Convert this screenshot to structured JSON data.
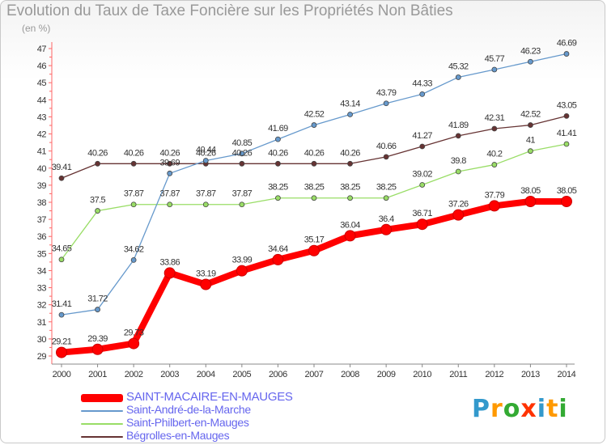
{
  "header": {
    "title": "Evolution du Taux de Taxe Foncière sur les Propriétés Non Bâties",
    "subtitle": "(en %)"
  },
  "logo": {
    "text": "Proxiti",
    "colors": [
      "#3399cc",
      "#ff9900",
      "#33aa33",
      "#ff3300"
    ]
  },
  "chart_data": {
    "type": "line",
    "x": [
      "2000",
      "2001",
      "2002",
      "2003",
      "2004",
      "2005",
      "2006",
      "2007",
      "2008",
      "2009",
      "2010",
      "2011",
      "2012",
      "2013",
      "2014"
    ],
    "ylim": [
      29,
      47
    ],
    "yticks": [
      29,
      30,
      31,
      32,
      33,
      34,
      35,
      36,
      37,
      38,
      39,
      40,
      41,
      42,
      43,
      44,
      45,
      46,
      47
    ],
    "grid": false,
    "legend_placement": "bottom-left",
    "series": [
      {
        "name": "SAINT-MACAIRE-EN-MAUGES",
        "color": "#ff0000",
        "values": [
          29.21,
          29.39,
          29.73,
          33.86,
          33.19,
          33.99,
          34.64,
          35.17,
          36.04,
          36.4,
          36.71,
          37.26,
          37.79,
          38.05,
          38.05
        ],
        "labels": [
          "29.21",
          "29.39",
          "29.73",
          "33.86",
          "33.19",
          "33.99",
          "34.64",
          "35.17",
          "36.04",
          "36.4",
          "36.71",
          "37.26",
          "37.79",
          "38.05",
          "38.05"
        ]
      },
      {
        "name": "Saint-André-de-la-Marche",
        "color": "#6699cc",
        "values": [
          31.41,
          31.72,
          34.62,
          39.69,
          40.44,
          40.85,
          41.69,
          42.52,
          43.14,
          43.79,
          44.33,
          45.32,
          45.77,
          46.23,
          46.69
        ],
        "labels": [
          "31.41",
          "31.72",
          "34.62",
          "39.69",
          "40.44",
          "40.85",
          "41.69",
          "42.52",
          "43.14",
          "43.79",
          "44.33",
          "45.32",
          "45.77",
          "46.23",
          "46.69"
        ]
      },
      {
        "name": "Saint-Philbert-en-Mauges",
        "color": "#99dd66",
        "values": [
          34.65,
          37.5,
          37.87,
          37.87,
          37.87,
          37.87,
          38.25,
          38.25,
          38.25,
          38.25,
          39.02,
          39.8,
          40.2,
          41,
          41.41
        ],
        "labels": [
          "34.65",
          "37.5",
          "37.87",
          "37.87",
          "37.87",
          "37.87",
          "38.25",
          "38.25",
          "38.25",
          "38.25",
          "39.02",
          "39.8",
          "40.2",
          "41",
          "41.41"
        ]
      },
      {
        "name": "Bégrolles-en-Mauges",
        "color": "#663333",
        "values": [
          39.41,
          40.26,
          40.26,
          40.26,
          40.26,
          40.26,
          40.26,
          40.26,
          40.26,
          40.66,
          41.27,
          41.89,
          42.31,
          42.52,
          43.05
        ],
        "labels": [
          "39.41",
          "40.26",
          "40.26",
          "40.26",
          "40.26",
          "40.26",
          "40.26",
          "40.26",
          "40.26",
          "40.66",
          "41.27",
          "41.89",
          "42.31",
          "42.52",
          "43.05"
        ]
      }
    ]
  }
}
